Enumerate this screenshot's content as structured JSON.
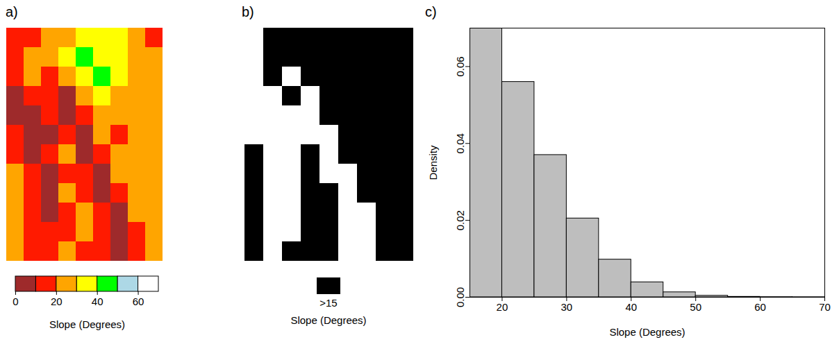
{
  "chart_data": [
    {
      "type": "heatmap",
      "title": "a)",
      "cells": [
        [
          12,
          18,
          22,
          28,
          32,
          35,
          30,
          22,
          18
        ],
        [
          10,
          20,
          26,
          34,
          42,
          38,
          32,
          26,
          20
        ],
        [
          14,
          22,
          12,
          28,
          36,
          40,
          30,
          24,
          22
        ],
        [
          8,
          10,
          16,
          8,
          24,
          30,
          28,
          22,
          24
        ],
        [
          6,
          8,
          12,
          6,
          18,
          26,
          20,
          24,
          26
        ],
        [
          10,
          6,
          8,
          14,
          5,
          22,
          18,
          28,
          24
        ],
        [
          18,
          8,
          10,
          20,
          6,
          16,
          24,
          26,
          22
        ],
        [
          22,
          10,
          8,
          18,
          12,
          8,
          22,
          24,
          20
        ],
        [
          20,
          12,
          6,
          22,
          16,
          6,
          18,
          22,
          24
        ],
        [
          24,
          10,
          8,
          16,
          20,
          10,
          8,
          20,
          26
        ],
        [
          22,
          14,
          10,
          18,
          24,
          14,
          6,
          18,
          24
        ],
        [
          20,
          12,
          16,
          20,
          18,
          12,
          8,
          16,
          22
        ]
      ],
      "colors": [
        "#9e2a2b",
        "#ff1a00",
        "#ffa500",
        "#ffff00",
        "#00ff00",
        "#add8e6",
        "#ffffff"
      ],
      "colorbar": {
        "bins": [
          0,
          10,
          20,
          30,
          40,
          50,
          60,
          70
        ],
        "ticks": [
          0,
          20,
          40,
          60
        ],
        "label": "Slope (Degrees)"
      }
    },
    {
      "type": "heatmap",
      "title": "b)",
      "cells": [
        [
          12,
          18,
          22,
          28,
          32,
          35,
          30,
          22,
          18
        ],
        [
          10,
          20,
          26,
          34,
          42,
          38,
          32,
          26,
          20
        ],
        [
          14,
          22,
          12,
          28,
          36,
          40,
          30,
          24,
          22
        ],
        [
          8,
          10,
          16,
          8,
          24,
          30,
          28,
          22,
          24
        ],
        [
          6,
          8,
          12,
          6,
          18,
          26,
          20,
          24,
          26
        ],
        [
          10,
          6,
          8,
          14,
          5,
          22,
          18,
          28,
          24
        ],
        [
          18,
          8,
          10,
          20,
          6,
          16,
          24,
          26,
          22
        ],
        [
          22,
          10,
          8,
          18,
          12,
          8,
          22,
          24,
          20
        ],
        [
          20,
          12,
          6,
          22,
          16,
          6,
          18,
          22,
          24
        ],
        [
          24,
          10,
          8,
          16,
          20,
          10,
          8,
          20,
          26
        ],
        [
          22,
          14,
          10,
          18,
          24,
          14,
          6,
          18,
          24
        ],
        [
          20,
          12,
          16,
          20,
          18,
          12,
          8,
          16,
          22
        ]
      ],
      "threshold": 15,
      "colors": [
        "#ffffff",
        "#000000"
      ],
      "legend_label": ">15",
      "colorbar_label": "Slope (Degrees)"
    },
    {
      "type": "histogram",
      "title": "c)",
      "bins": [
        15,
        20,
        25,
        30,
        35,
        40,
        45,
        50,
        55,
        60,
        65,
        70
      ],
      "values": [
        0.07,
        0.056,
        0.037,
        0.0205,
        0.0098,
        0.0039,
        0.0013,
        0.0004,
        0.00012,
        5e-05,
        3e-05
      ],
      "color": "#bebebe",
      "xlim": [
        15,
        70
      ],
      "ylim": [
        0,
        0.07
      ],
      "xticks": [
        20,
        30,
        40,
        50,
        60,
        70
      ],
      "yticks": [
        {
          "value": 0,
          "label": "0.00"
        },
        {
          "value": 0.02,
          "label": "0.02"
        },
        {
          "value": 0.04,
          "label": "0.04"
        },
        {
          "value": 0.06,
          "label": "0.06"
        }
      ],
      "x_label": "Slope (Degrees)",
      "y_label": "Density"
    }
  ]
}
